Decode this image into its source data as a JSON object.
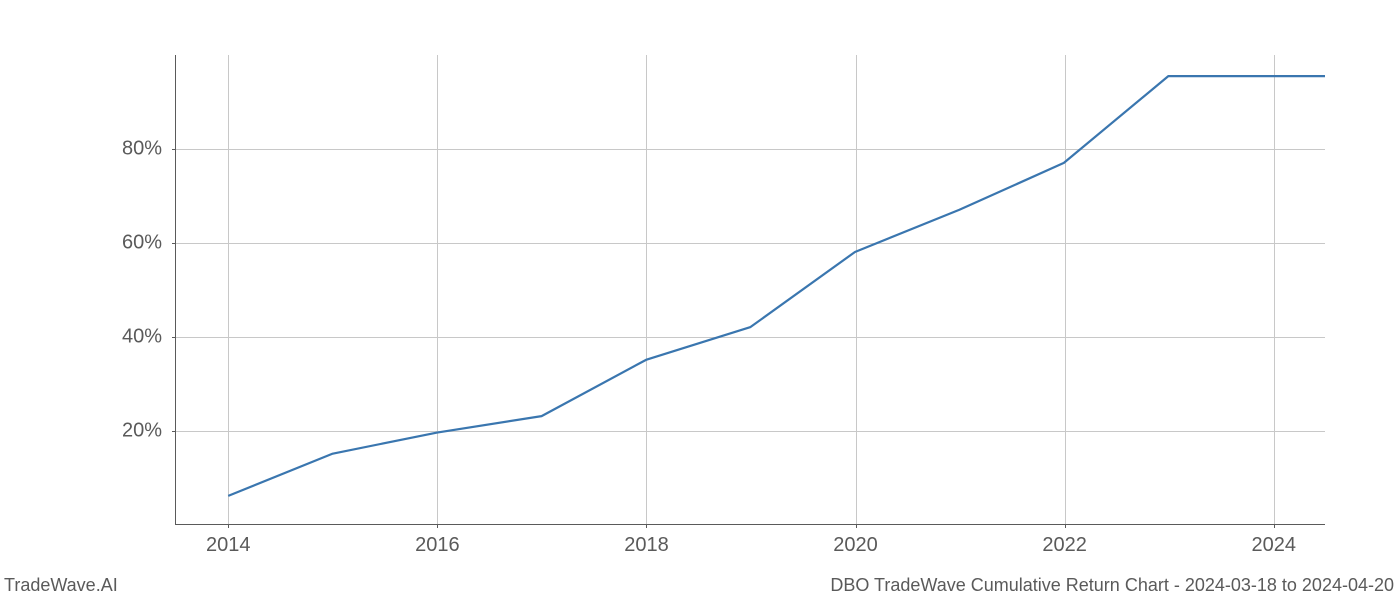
{
  "chart": {
    "type": "line",
    "background_color": "#ffffff",
    "grid_color": "#c8c8c8",
    "axis_color": "#5a5a5a",
    "line_color": "#3a76af",
    "line_width": 2.2,
    "tick_label_color": "#5a5a5a",
    "tick_label_fontsize": 20,
    "xlim": [
      2013.5,
      2024.5
    ],
    "ylim": [
      0,
      100
    ],
    "x_ticks": [
      2014,
      2016,
      2018,
      2020,
      2022,
      2024
    ],
    "x_tick_labels": [
      "2014",
      "2016",
      "2018",
      "2020",
      "2022",
      "2024"
    ],
    "y_ticks": [
      20,
      40,
      60,
      80
    ],
    "y_tick_labels": [
      "20%",
      "40%",
      "60%",
      "80%"
    ],
    "data_x": [
      2014,
      2015,
      2016,
      2017,
      2018,
      2019,
      2020,
      2021,
      2022,
      2023,
      2024,
      2024.5
    ],
    "data_y": [
      6,
      15,
      19.5,
      23,
      35,
      42,
      58,
      67,
      77,
      95.5,
      95.5,
      95.5
    ]
  },
  "footer": {
    "left": "TradeWave.AI",
    "right": "DBO TradeWave Cumulative Return Chart - 2024-03-18 to 2024-04-20"
  }
}
